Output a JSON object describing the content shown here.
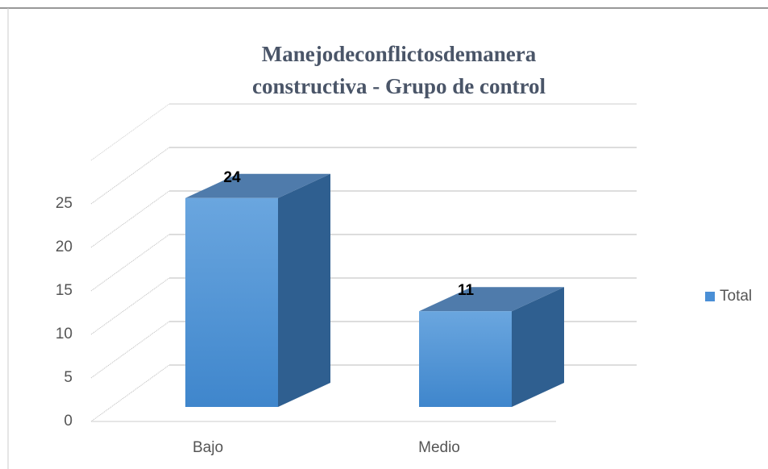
{
  "chart_data": {
    "type": "bar3d",
    "title": [
      "Manejodeconflictosdemanera",
      "constructiva - Grupo de control"
    ],
    "categories": [
      "Bajo",
      "Medio"
    ],
    "series": [
      {
        "name": "Total",
        "color": "#4a8fd6",
        "values": [
          24,
          11
        ]
      }
    ],
    "ylim": [
      0,
      30
    ],
    "yticks": [
      0,
      5,
      10,
      15,
      20,
      25
    ],
    "grid": true,
    "legend": "right"
  }
}
